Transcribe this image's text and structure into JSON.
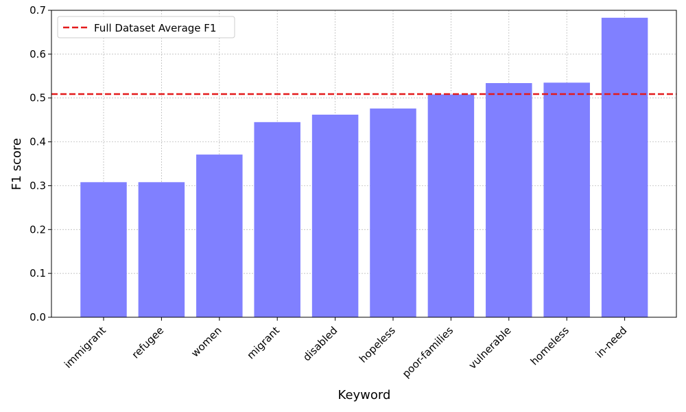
{
  "chart_data": {
    "type": "bar",
    "categories": [
      "immigrant",
      "refugee",
      "women",
      "migrant",
      "disabled",
      "hopeless",
      "poor-families",
      "vulnerable",
      "homeless",
      "in-need"
    ],
    "values": [
      0.308,
      0.308,
      0.371,
      0.445,
      0.462,
      0.476,
      0.508,
      0.534,
      0.535,
      0.683
    ],
    "xlabel": "Keyword",
    "ylabel": "F1 score",
    "ylim": [
      0,
      0.7
    ],
    "yticks": [
      "0.0",
      "0.1",
      "0.2",
      "0.3",
      "0.4",
      "0.5",
      "0.6",
      "0.7"
    ],
    "grid": true,
    "bar_color": "#8080ff",
    "reference_line": {
      "label": "Full Dataset Average F1",
      "value": 0.509,
      "color": "#e31a1c",
      "style": "dashed"
    },
    "legend_position": "top-left"
  }
}
